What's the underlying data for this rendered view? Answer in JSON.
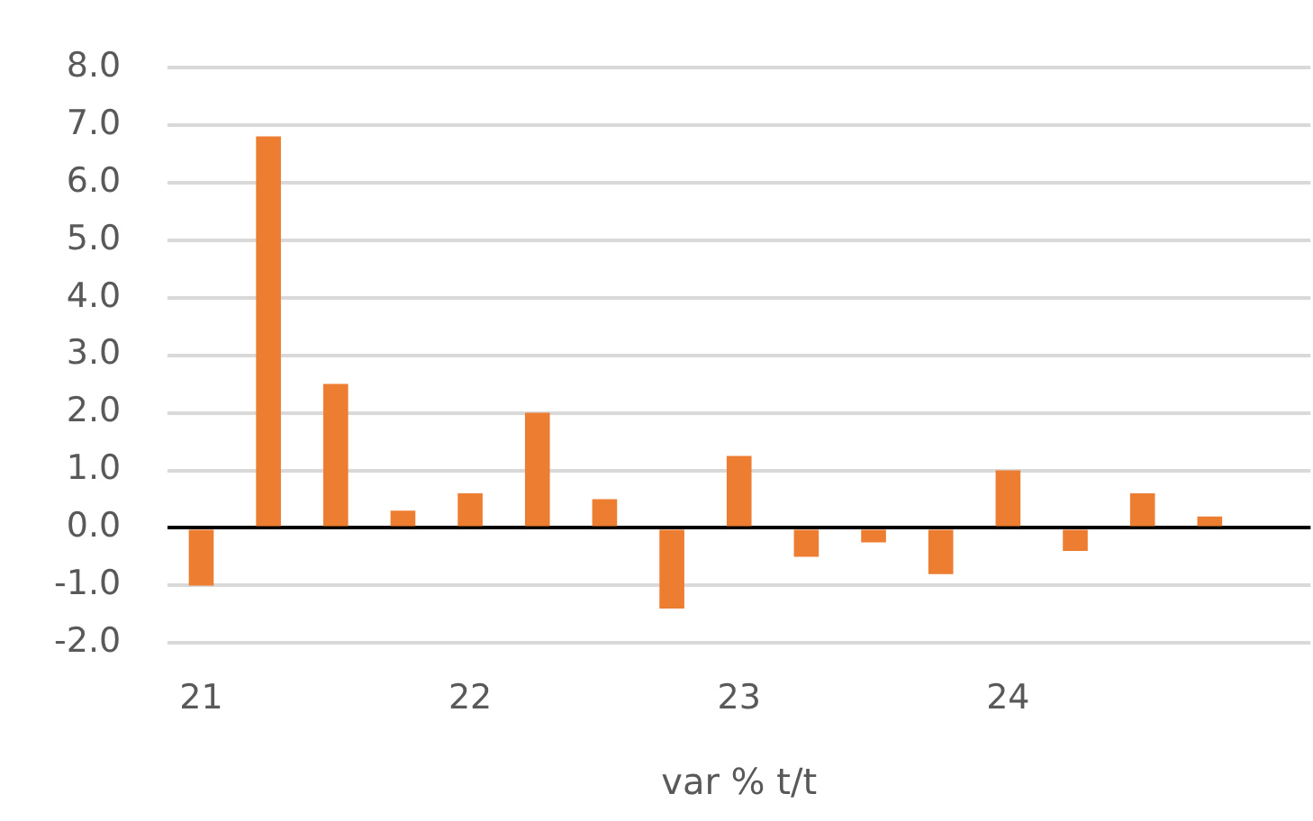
{
  "chart_data": {
    "type": "bar",
    "xlabel": "var % t/t",
    "categories": [
      "21",
      null,
      null,
      null,
      "22",
      null,
      null,
      null,
      "23",
      null,
      null,
      null,
      "24",
      null,
      null,
      null,
      null
    ],
    "values": [
      -1.0,
      6.8,
      2.5,
      0.3,
      0.6,
      2.0,
      0.5,
      -1.4,
      1.25,
      -0.5,
      -0.25,
      -0.8,
      1.0,
      -0.4,
      0.6,
      0.2,
      null
    ],
    "color": "#ed7d31",
    "ylim": [
      -2,
      8
    ],
    "yticks": [
      {
        "value": -2,
        "label": "-2.0"
      },
      {
        "value": -1,
        "label": "-1.0"
      },
      {
        "value": 0,
        "label": "0.0"
      },
      {
        "value": 1,
        "label": "1.0"
      },
      {
        "value": 2,
        "label": "2.0"
      },
      {
        "value": 3,
        "label": "3.0"
      },
      {
        "value": 4,
        "label": "4.0"
      },
      {
        "value": 5,
        "label": "5.0"
      },
      {
        "value": 6,
        "label": "6.0"
      },
      {
        "value": 7,
        "label": "7.0"
      },
      {
        "value": 8,
        "label": "8.0"
      }
    ],
    "grid": "y"
  }
}
